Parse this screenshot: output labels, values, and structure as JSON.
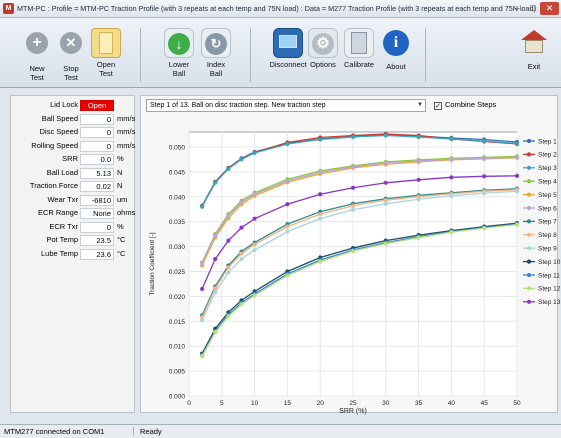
{
  "window": {
    "title": "MTM-PC : Profile = MTM-PC Traction Profile (with 3 repeats at each temp and 75N load) : Data = M277 Traction Profile (with 3 repeats at each temp and 75N load)",
    "app_icon": "mtm-app-icon"
  },
  "toolbar": {
    "buttons": [
      {
        "id": "new-test",
        "label": "New\nTest",
        "icon": "plus-icon"
      },
      {
        "id": "stop-test",
        "label": "Stop\nTest",
        "icon": "stop-x-icon"
      },
      {
        "id": "open-test",
        "label": "Open\nTest",
        "icon": "folder-icon"
      },
      {
        "id": "lower-ball",
        "label": "Lower\nBall",
        "icon": "down-arrow-icon"
      },
      {
        "id": "index-ball",
        "label": "Index\nBall",
        "icon": "rotate-icon"
      },
      {
        "id": "disconnect",
        "label": "Disconnect",
        "icon": "disconnect-icon"
      },
      {
        "id": "options",
        "label": "Options",
        "icon": "options-gear-icon"
      },
      {
        "id": "calibrate",
        "label": "Calibrate",
        "icon": "calculator-icon"
      },
      {
        "id": "about",
        "label": "About",
        "icon": "info-icon"
      },
      {
        "id": "exit",
        "label": "Exit",
        "icon": "exit-house-icon"
      }
    ]
  },
  "params": [
    {
      "label": "Lid Lock",
      "value": "Open",
      "unit": ""
    },
    {
      "label": "Ball Speed",
      "value": "0",
      "unit": "mm/s"
    },
    {
      "label": "Disc Speed",
      "value": "0",
      "unit": "mm/s"
    },
    {
      "label": "Rolling Speed",
      "value": "0",
      "unit": "mm/s"
    },
    {
      "label": "SRR",
      "value": "0.0",
      "unit": "%"
    },
    {
      "label": "Ball Load",
      "value": "5.13",
      "unit": "N"
    },
    {
      "label": "Traction Force",
      "value": "0.02",
      "unit": "N"
    },
    {
      "label": "Wear Txr",
      "value": "-6810",
      "unit": "um"
    },
    {
      "label": "ECR Range",
      "value": "None",
      "unit": "ohms"
    },
    {
      "label": "ECR Txr",
      "value": "0",
      "unit": "%"
    },
    {
      "label": "Pot Temp",
      "value": "23.5",
      "unit": "°C"
    },
    {
      "label": "Lube Temp",
      "value": "23.6",
      "unit": "°C"
    }
  ],
  "step_select": {
    "value": "Step 1 of 13. Ball on disc traction step. New traction step"
  },
  "combine_steps": {
    "label": "Combine Steps",
    "checked": true
  },
  "status": {
    "left": "MTM277 connected on COM1",
    "right": "Ready"
  },
  "colors": {
    "lid_lock_open": "#ee0000"
  },
  "chart_data": {
    "type": "line",
    "xlabel": "SRR (%)",
    "ylabel": "Traction Coefficient [-]",
    "xlim": [
      0,
      50
    ],
    "ylim": [
      0,
      0.053
    ],
    "xticks": [
      0,
      5,
      10,
      15,
      20,
      25,
      30,
      35,
      40,
      45,
      50
    ],
    "yticks": [
      "0.000",
      "0.005",
      "0.010",
      "0.015",
      "0.020",
      "0.025",
      "0.030",
      "0.035",
      "0.040",
      "0.045",
      "0.050"
    ],
    "grid": true,
    "legend": "right",
    "x": [
      2,
      4,
      6,
      8,
      10,
      15,
      20,
      25,
      30,
      35,
      40,
      45,
      50
    ],
    "series": [
      {
        "name": "Step 1",
        "color": "#3b6fb6",
        "values": [
          0.0382,
          0.043,
          0.0458,
          0.0477,
          0.049,
          0.0507,
          0.0516,
          0.0521,
          0.0524,
          0.0522,
          0.0518,
          0.0515,
          0.051
        ]
      },
      {
        "name": "Step 2",
        "color": "#c83a2e",
        "values": [
          0.0381,
          0.0429,
          0.0457,
          0.0476,
          0.0489,
          0.0509,
          0.0519,
          0.0523,
          0.0526,
          0.0523,
          0.0516,
          0.0511,
          0.0506
        ]
      },
      {
        "name": "Step 3",
        "color": "#3aa5b8",
        "values": [
          0.038,
          0.0428,
          0.0456,
          0.0475,
          0.0488,
          0.0506,
          0.0515,
          0.052,
          0.0523,
          0.052,
          0.0516,
          0.0512,
          0.0507
        ]
      },
      {
        "name": "Step 4",
        "color": "#8cc63f",
        "values": [
          0.0268,
          0.0325,
          0.0365,
          0.0392,
          0.0408,
          0.0435,
          0.0452,
          0.0462,
          0.047,
          0.0474,
          0.0477,
          0.0479,
          0.0481
        ]
      },
      {
        "name": "Step 5",
        "color": "#f0a830",
        "values": [
          0.0262,
          0.0318,
          0.0357,
          0.0385,
          0.0402,
          0.0429,
          0.0446,
          0.0458,
          0.0465,
          0.047,
          0.0474,
          0.0476,
          0.0478
        ]
      },
      {
        "name": "Step 6",
        "color": "#b9a5db",
        "values": [
          0.0266,
          0.0322,
          0.0362,
          0.0389,
          0.0405,
          0.0432,
          0.0449,
          0.046,
          0.0468,
          0.0472,
          0.0475,
          0.0477,
          0.0479
        ]
      },
      {
        "name": "Step 7",
        "color": "#2e8a8a",
        "values": [
          0.0162,
          0.022,
          0.0262,
          0.029,
          0.0308,
          0.0345,
          0.037,
          0.0386,
          0.0396,
          0.0403,
          0.0408,
          0.0413,
          0.0416
        ]
      },
      {
        "name": "Step 8",
        "color": "#f4b183",
        "values": [
          0.0158,
          0.0216,
          0.0258,
          0.0286,
          0.0304,
          0.034,
          0.0365,
          0.0382,
          0.0393,
          0.04,
          0.0406,
          0.0411,
          0.0414
        ]
      },
      {
        "name": "Step 9",
        "color": "#a9d4dc",
        "values": [
          0.0152,
          0.0208,
          0.0248,
          0.0275,
          0.0293,
          0.033,
          0.0356,
          0.0374,
          0.0386,
          0.0395,
          0.0402,
          0.0407,
          0.0411
        ]
      },
      {
        "name": "Step 10",
        "color": "#1f4e5f",
        "values": [
          0.0085,
          0.0135,
          0.0168,
          0.0192,
          0.021,
          0.025,
          0.0278,
          0.0297,
          0.0312,
          0.0323,
          0.0332,
          0.034,
          0.0347
        ]
      },
      {
        "name": "Step 11",
        "color": "#3a86d1",
        "values": [
          0.0082,
          0.013,
          0.0163,
          0.0187,
          0.0205,
          0.0245,
          0.0273,
          0.0293,
          0.0308,
          0.032,
          0.033,
          0.0338,
          0.0345
        ]
      },
      {
        "name": "Step 12",
        "color": "#b5e07a",
        "values": [
          0.008,
          0.0128,
          0.016,
          0.0184,
          0.0202,
          0.0242,
          0.027,
          0.0291,
          0.0306,
          0.0318,
          0.0329,
          0.0337,
          0.0344
        ]
      },
      {
        "name": "Step 13",
        "color": "#8b35c9",
        "values": [
          0.0215,
          0.0275,
          0.0312,
          0.0338,
          0.0356,
          0.0385,
          0.0405,
          0.0418,
          0.0428,
          0.0434,
          0.0439,
          0.0441,
          0.0442
        ]
      }
    ]
  }
}
